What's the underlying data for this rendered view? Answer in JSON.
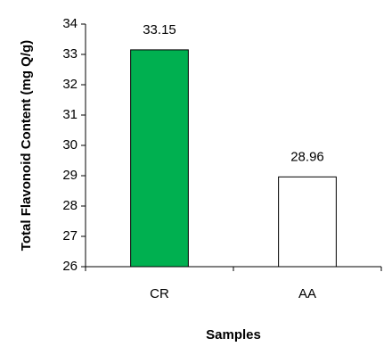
{
  "chart_data": {
    "type": "bar",
    "categories": [
      "CR",
      "AA"
    ],
    "values": [
      33.15,
      28.96
    ],
    "colors": [
      "#00b050",
      "#ffffff"
    ],
    "x_label": "Samples",
    "y_label": "Total Flavonoid Content (mg Q/g)",
    "ylim": [
      26,
      34
    ],
    "yticks": [
      26,
      27,
      28,
      29,
      30,
      31,
      32,
      33,
      34
    ]
  }
}
